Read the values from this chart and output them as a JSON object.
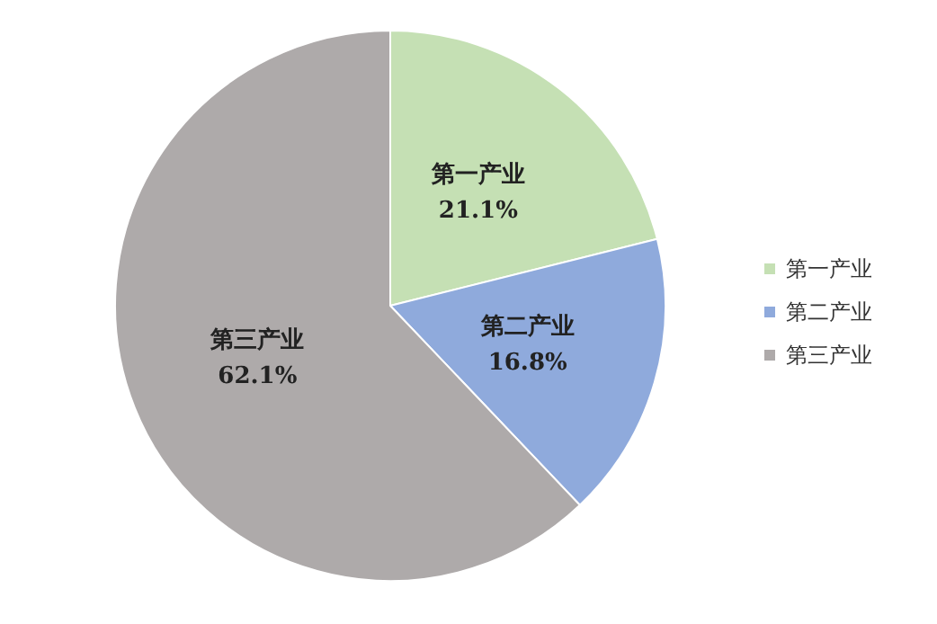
{
  "chart_data": {
    "type": "pie",
    "categories": [
      "第一产业",
      "第二产业",
      "第三产业"
    ],
    "values": [
      21.1,
      16.8,
      62.1
    ],
    "colors": [
      "#c5e0b4",
      "#8faadc",
      "#aeaaaa"
    ],
    "value_labels": [
      "21.1%",
      "16.8%",
      "62.1%"
    ],
    "legend": "right"
  }
}
